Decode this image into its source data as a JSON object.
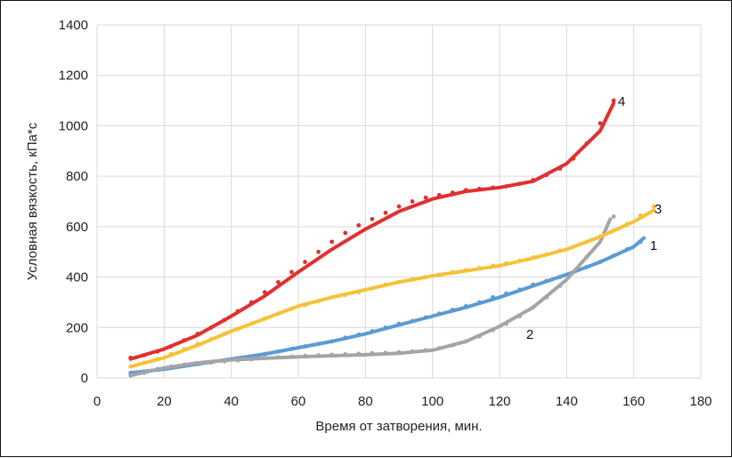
{
  "chart_data": {
    "type": "scatter",
    "title": "",
    "xlabel": "Время от затворения, мин.",
    "ylabel": "Условная вязкость, кПа*с",
    "xlim": [
      0,
      180
    ],
    "ylim": [
      0,
      1400
    ],
    "x_ticks": [
      "0",
      "20",
      "40",
      "60",
      "80",
      "100",
      "120",
      "140",
      "160",
      "180"
    ],
    "y_ticks": [
      "0",
      "200",
      "400",
      "600",
      "800",
      "1000",
      "1200",
      "1400"
    ],
    "grid": true,
    "legend": "none",
    "series": [
      {
        "name": "1",
        "color": "#5b9bd5",
        "points": [
          [
            10,
            20
          ],
          [
            14,
            25
          ],
          [
            18,
            32
          ],
          [
            22,
            40
          ],
          [
            26,
            48
          ],
          [
            30,
            55
          ],
          [
            34,
            62
          ],
          [
            38,
            68
          ],
          [
            42,
            75
          ],
          [
            46,
            85
          ],
          [
            50,
            95
          ],
          [
            54,
            105
          ],
          [
            58,
            115
          ],
          [
            62,
            125
          ],
          [
            66,
            135
          ],
          [
            70,
            145
          ],
          [
            74,
            160
          ],
          [
            78,
            172
          ],
          [
            82,
            185
          ],
          [
            86,
            200
          ],
          [
            90,
            215
          ],
          [
            94,
            225
          ],
          [
            98,
            240
          ],
          [
            102,
            255
          ],
          [
            106,
            270
          ],
          [
            110,
            285
          ],
          [
            114,
            300
          ],
          [
            118,
            320
          ],
          [
            122,
            335
          ],
          [
            126,
            350
          ],
          [
            130,
            370
          ],
          [
            134,
            385
          ],
          [
            138,
            400
          ],
          [
            142,
            420
          ],
          [
            146,
            440
          ],
          [
            150,
            460
          ],
          [
            154,
            485
          ],
          [
            158,
            510
          ],
          [
            162,
            540
          ]
        ],
        "trend": [
          [
            10,
            20
          ],
          [
            20,
            35
          ],
          [
            30,
            55
          ],
          [
            40,
            75
          ],
          [
            50,
            95
          ],
          [
            60,
            120
          ],
          [
            70,
            145
          ],
          [
            80,
            175
          ],
          [
            90,
            210
          ],
          [
            100,
            245
          ],
          [
            110,
            280
          ],
          [
            120,
            320
          ],
          [
            130,
            365
          ],
          [
            140,
            410
          ],
          [
            150,
            460
          ],
          [
            160,
            520
          ],
          [
            163,
            555
          ]
        ]
      },
      {
        "name": "2",
        "color": "#a5a5a5",
        "points": [
          [
            10,
            10
          ],
          [
            14,
            20
          ],
          [
            18,
            35
          ],
          [
            22,
            45
          ],
          [
            26,
            52
          ],
          [
            30,
            58
          ],
          [
            34,
            62
          ],
          [
            38,
            66
          ],
          [
            42,
            70
          ],
          [
            46,
            74
          ],
          [
            50,
            78
          ],
          [
            54,
            82
          ],
          [
            58,
            85
          ],
          [
            62,
            88
          ],
          [
            66,
            90
          ],
          [
            70,
            92
          ],
          [
            74,
            94
          ],
          [
            78,
            96
          ],
          [
            82,
            98
          ],
          [
            86,
            100
          ],
          [
            90,
            102
          ],
          [
            94,
            105
          ],
          [
            98,
            110
          ],
          [
            102,
            118
          ],
          [
            106,
            130
          ],
          [
            110,
            145
          ],
          [
            114,
            165
          ],
          [
            118,
            190
          ],
          [
            122,
            215
          ],
          [
            126,
            245
          ],
          [
            130,
            280
          ],
          [
            134,
            320
          ],
          [
            138,
            365
          ],
          [
            142,
            420
          ],
          [
            146,
            480
          ],
          [
            150,
            560
          ],
          [
            154,
            640
          ]
        ],
        "trend": [
          [
            10,
            10
          ],
          [
            20,
            40
          ],
          [
            30,
            60
          ],
          [
            40,
            72
          ],
          [
            50,
            78
          ],
          [
            60,
            84
          ],
          [
            70,
            88
          ],
          [
            80,
            92
          ],
          [
            90,
            98
          ],
          [
            100,
            110
          ],
          [
            110,
            145
          ],
          [
            120,
            205
          ],
          [
            130,
            280
          ],
          [
            140,
            390
          ],
          [
            150,
            540
          ],
          [
            153,
            630
          ]
        ]
      },
      {
        "name": "3",
        "color": "#f5c238",
        "points": [
          [
            10,
            45
          ],
          [
            14,
            60
          ],
          [
            18,
            75
          ],
          [
            22,
            95
          ],
          [
            26,
            115
          ],
          [
            30,
            135
          ],
          [
            34,
            155
          ],
          [
            38,
            175
          ],
          [
            42,
            195
          ],
          [
            46,
            215
          ],
          [
            50,
            235
          ],
          [
            54,
            255
          ],
          [
            58,
            275
          ],
          [
            62,
            290
          ],
          [
            66,
            305
          ],
          [
            70,
            320
          ],
          [
            74,
            330
          ],
          [
            78,
            340
          ],
          [
            82,
            355
          ],
          [
            86,
            370
          ],
          [
            90,
            380
          ],
          [
            94,
            390
          ],
          [
            98,
            400
          ],
          [
            102,
            410
          ],
          [
            106,
            420
          ],
          [
            110,
            428
          ],
          [
            114,
            436
          ],
          [
            118,
            445
          ],
          [
            122,
            455
          ],
          [
            126,
            465
          ],
          [
            130,
            478
          ],
          [
            134,
            490
          ],
          [
            138,
            505
          ],
          [
            142,
            520
          ],
          [
            146,
            540
          ],
          [
            150,
            560
          ],
          [
            154,
            585
          ],
          [
            158,
            610
          ],
          [
            162,
            645
          ],
          [
            166,
            680
          ]
        ],
        "trend": [
          [
            10,
            45
          ],
          [
            20,
            80
          ],
          [
            30,
            130
          ],
          [
            40,
            185
          ],
          [
            50,
            235
          ],
          [
            60,
            285
          ],
          [
            70,
            320
          ],
          [
            80,
            350
          ],
          [
            90,
            380
          ],
          [
            100,
            405
          ],
          [
            110,
            425
          ],
          [
            120,
            445
          ],
          [
            130,
            475
          ],
          [
            140,
            510
          ],
          [
            150,
            560
          ],
          [
            160,
            620
          ],
          [
            166,
            665
          ]
        ]
      },
      {
        "name": "4",
        "color": "#e03030",
        "points": [
          [
            10,
            80
          ],
          [
            14,
            90
          ],
          [
            18,
            105
          ],
          [
            22,
            125
          ],
          [
            26,
            150
          ],
          [
            30,
            175
          ],
          [
            34,
            200
          ],
          [
            38,
            230
          ],
          [
            42,
            265
          ],
          [
            46,
            300
          ],
          [
            50,
            340
          ],
          [
            54,
            380
          ],
          [
            58,
            420
          ],
          [
            62,
            460
          ],
          [
            66,
            500
          ],
          [
            70,
            540
          ],
          [
            74,
            575
          ],
          [
            78,
            605
          ],
          [
            82,
            630
          ],
          [
            86,
            655
          ],
          [
            90,
            680
          ],
          [
            94,
            700
          ],
          [
            98,
            715
          ],
          [
            102,
            725
          ],
          [
            106,
            735
          ],
          [
            110,
            745
          ],
          [
            114,
            750
          ],
          [
            118,
            755
          ],
          [
            122,
            760
          ],
          [
            126,
            770
          ],
          [
            130,
            785
          ],
          [
            134,
            805
          ],
          [
            138,
            830
          ],
          [
            142,
            870
          ],
          [
            146,
            930
          ],
          [
            150,
            1010
          ],
          [
            154,
            1100
          ]
        ],
        "trend": [
          [
            10,
            75
          ],
          [
            20,
            115
          ],
          [
            30,
            170
          ],
          [
            40,
            245
          ],
          [
            50,
            325
          ],
          [
            60,
            420
          ],
          [
            70,
            510
          ],
          [
            80,
            590
          ],
          [
            90,
            660
          ],
          [
            100,
            710
          ],
          [
            110,
            740
          ],
          [
            120,
            755
          ],
          [
            130,
            780
          ],
          [
            140,
            850
          ],
          [
            150,
            980
          ],
          [
            154,
            1090
          ]
        ]
      }
    ]
  }
}
